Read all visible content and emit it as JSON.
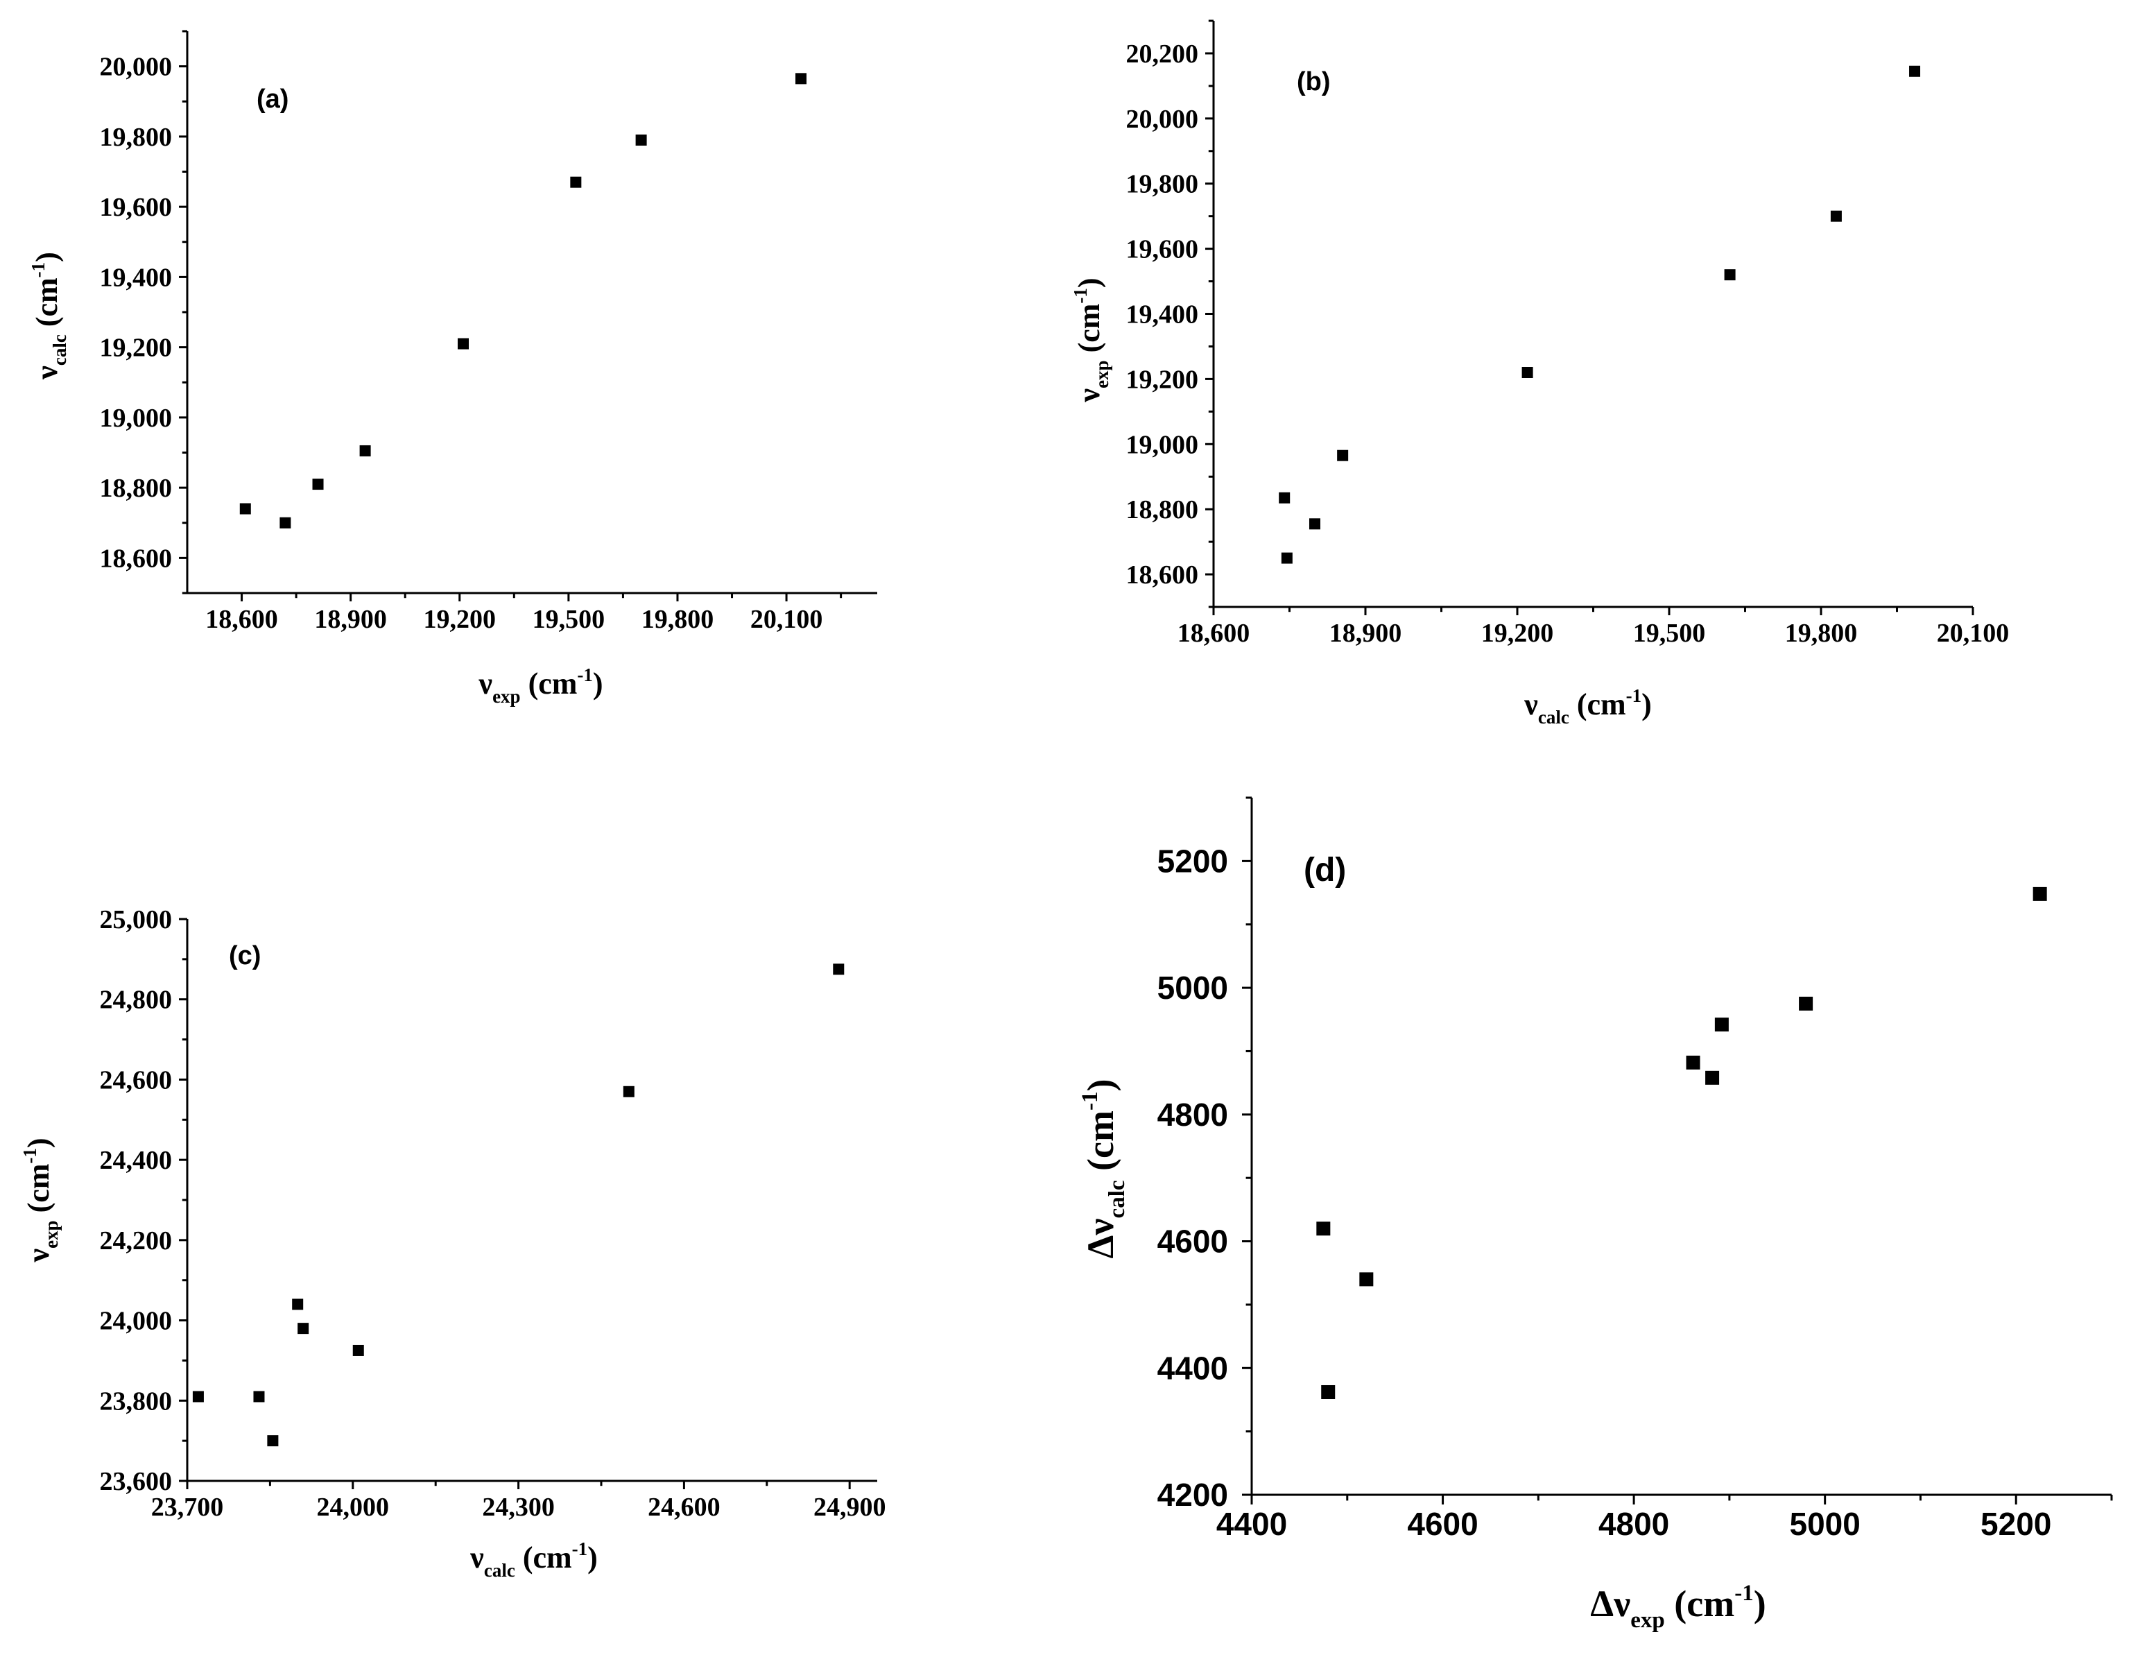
{
  "chart_data": [
    {
      "type": "scatter",
      "panel_label": "(a)",
      "xlabel": "ν_exp (cm^-1)",
      "ylabel": "ν_calc (cm^-1)",
      "xlabel_parts": {
        "symbol": "ν",
        "sub": "exp",
        "unit": "(cm",
        "sup": "-1",
        "close": ")"
      },
      "ylabel_parts": {
        "symbol": "ν",
        "sub": "calc",
        "unit": "(cm",
        "sup": "-1",
        "close": ")"
      },
      "xlim": [
        18450,
        20350
      ],
      "ylim": [
        18500,
        20100
      ],
      "xticks": [
        18600,
        18900,
        19200,
        19500,
        19800,
        20100
      ],
      "xtick_labels": [
        "18,600",
        "18,900",
        "19,200",
        "19,500",
        "19,800",
        "20,100"
      ],
      "yticks": [
        18600,
        18800,
        19000,
        19200,
        19400,
        19600,
        19800,
        20000
      ],
      "ytick_labels": [
        "18,600",
        "18,800",
        "19,000",
        "19,200",
        "19,400",
        "19,600",
        "19,800",
        "20,000"
      ],
      "grid": false,
      "x": [
        18610,
        18720,
        18810,
        18940,
        19210,
        19520,
        19700,
        20140
      ],
      "y": [
        18740,
        18700,
        18810,
        18905,
        19210,
        19670,
        19790,
        19965
      ]
    },
    {
      "type": "scatter",
      "panel_label": "(b)",
      "xlabel": "ν_calc (cm^-1)",
      "ylabel": "ν_exp (cm^-1)",
      "xlabel_parts": {
        "symbol": "ν",
        "sub": "calc",
        "unit": "(cm",
        "sup": "-1",
        "close": ")"
      },
      "ylabel_parts": {
        "symbol": "ν",
        "sub": "exp",
        "unit": "(cm",
        "sup": "-1",
        "close": ")"
      },
      "xlim": [
        18600,
        20100
      ],
      "ylim": [
        18500,
        20300
      ],
      "xticks": [
        18600,
        18900,
        19200,
        19500,
        19800,
        20100
      ],
      "xtick_labels": [
        "18,600",
        "18,900",
        "19,200",
        "19,500",
        "19,800",
        "20,100"
      ],
      "yticks": [
        18600,
        18800,
        19000,
        19200,
        19400,
        19600,
        19800,
        20000,
        20200
      ],
      "ytick_labels": [
        "18,600",
        "18,800",
        "19,000",
        "19,200",
        "19,400",
        "19,600",
        "19,800",
        "20,000",
        "20,200"
      ],
      "grid": false,
      "x": [
        18740,
        18745,
        18800,
        18855,
        19220,
        19620,
        19830,
        19985
      ],
      "y": [
        18835,
        18650,
        18755,
        18965,
        19220,
        19520,
        19700,
        20145
      ]
    },
    {
      "type": "scatter",
      "panel_label": "(c)",
      "xlabel": "ν_calc (cm^-1)",
      "ylabel": "ν_exp (cm^-1)",
      "xlabel_parts": {
        "symbol": "ν",
        "sub": "calc",
        "unit": "(cm",
        "sup": "-1",
        "close": ")"
      },
      "ylabel_parts": {
        "symbol": "ν",
        "sub": "exp",
        "unit": "(cm",
        "sup": "-1",
        "close": ")"
      },
      "xlim": [
        23700,
        24950
      ],
      "ylim": [
        23600,
        25000
      ],
      "xticks": [
        23700,
        24000,
        24300,
        24600,
        24900
      ],
      "xtick_labels": [
        "23,700",
        "24,000",
        "24,300",
        "24,600",
        "24,900"
      ],
      "yticks": [
        23600,
        23800,
        24000,
        24200,
        24400,
        24600,
        24800,
        25000
      ],
      "ytick_labels": [
        "23,600",
        "23,800",
        "24,000",
        "24,200",
        "24,400",
        "24,600",
        "24,800",
        "25,000"
      ],
      "grid": false,
      "x": [
        23720,
        23830,
        23855,
        23900,
        23910,
        24010,
        24500,
        24880
      ],
      "y": [
        23810,
        23810,
        23700,
        24040,
        23980,
        23925,
        24570,
        24875
      ]
    },
    {
      "type": "scatter",
      "panel_label": "(d)",
      "xlabel": "Δν_exp (cm^-1)",
      "ylabel": "Δν_calc (cm^-1)",
      "xlabel_parts": {
        "symbol": "Δν",
        "sub": "exp",
        "unit": "(cm",
        "sup": "-1",
        "close": ")"
      },
      "ylabel_parts": {
        "symbol": "Δν",
        "sub": "calc",
        "unit": "(cm",
        "sup": "-1",
        "close": ")"
      },
      "xlim": [
        4400,
        5300
      ],
      "ylim": [
        4200,
        5300
      ],
      "xticks": [
        4400,
        4600,
        4800,
        5000,
        5200
      ],
      "xtick_labels": [
        "4400",
        "4600",
        "4800",
        "5000",
        "5200"
      ],
      "yticks": [
        4200,
        4400,
        4600,
        4800,
        5000,
        5200
      ],
      "ytick_labels": [
        "4200",
        "4400",
        "4600",
        "4800",
        "5000",
        "5200"
      ],
      "grid": false,
      "x": [
        4475,
        4480,
        4520,
        4862,
        4882,
        4892,
        4980,
        5225
      ],
      "y": [
        4620,
        4362,
        4540,
        4882,
        4858,
        4942,
        4975,
        5148
      ]
    }
  ]
}
